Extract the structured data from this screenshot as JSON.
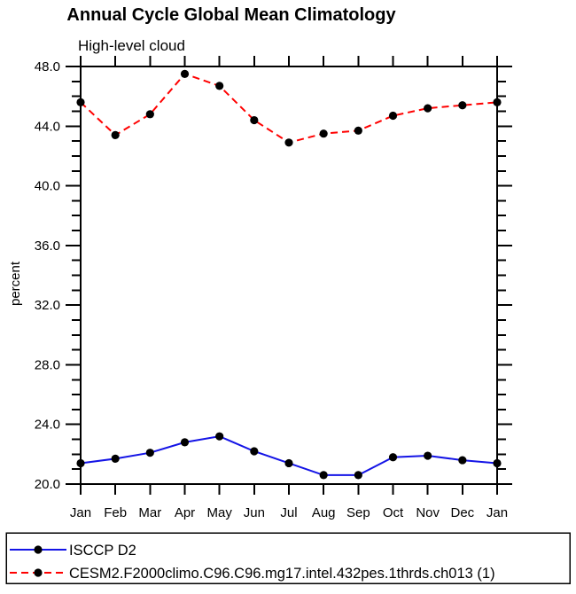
{
  "chart_data": {
    "type": "line",
    "title": "Annual Cycle Global Mean Climatology",
    "subtitle": "High-level cloud",
    "ylabel": "percent",
    "xlabel": "",
    "categories": [
      "Jan",
      "Feb",
      "Mar",
      "Apr",
      "May",
      "Jun",
      "Jul",
      "Aug",
      "Sep",
      "Oct",
      "Nov",
      "Dec",
      "Jan"
    ],
    "ylim": [
      20.0,
      48.0
    ],
    "ytick_major": 4.0,
    "ytick_minor": 1.0,
    "ytick_labels": [
      "20.0",
      "24.0",
      "28.0",
      "32.0",
      "36.0",
      "40.0",
      "44.0",
      "48.0"
    ],
    "grid": false,
    "legend_position": "bottom",
    "series": [
      {
        "name": "ISCCP D2",
        "color": "#1414e6",
        "line_style": "solid",
        "marker": "circle",
        "marker_color": "#000000",
        "values": [
          21.4,
          21.7,
          22.1,
          22.8,
          23.2,
          22.2,
          21.4,
          20.6,
          20.6,
          21.8,
          21.9,
          21.6,
          21.4
        ]
      },
      {
        "name": "CESM2.F2000climo.C96.C96.mg17.intel.432pes.1thrds.ch013 (1)",
        "color": "#ff0000",
        "line_style": "dashed",
        "marker": "circle",
        "marker_color": "#000000",
        "values": [
          45.6,
          43.4,
          44.8,
          47.5,
          46.7,
          44.4,
          42.9,
          43.5,
          43.7,
          44.7,
          45.2,
          45.4,
          45.6
        ]
      }
    ],
    "colors": {
      "axis": "#000000",
      "background": "#ffffff",
      "text": "#000000"
    }
  }
}
